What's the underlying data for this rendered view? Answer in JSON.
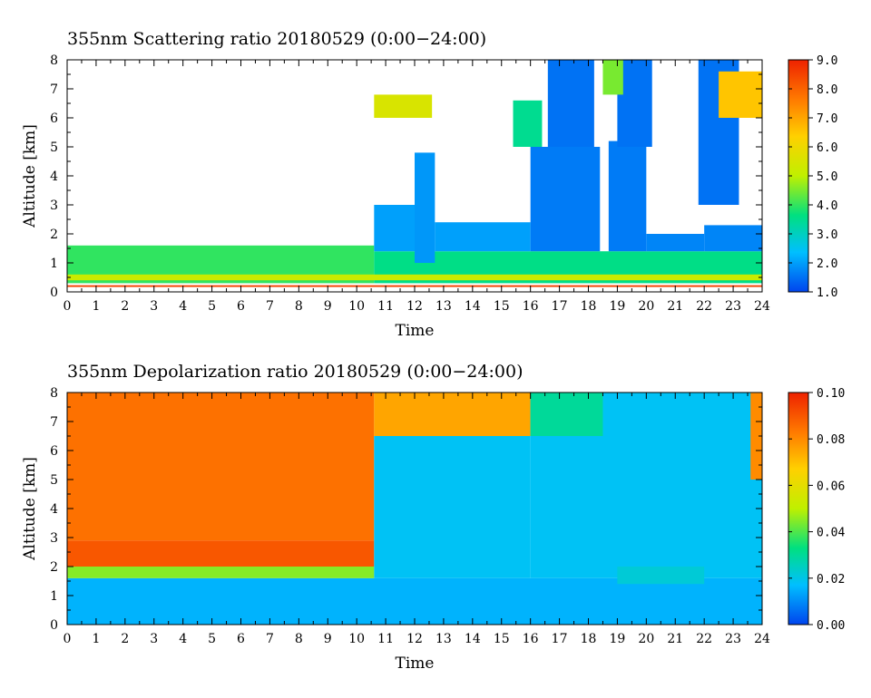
{
  "chart_data": [
    {
      "type": "heatmap",
      "title": "355nm Scattering ratio  20180529 (0:00−24:00)",
      "xlabel": "Time",
      "ylabel": "Altitude [km]",
      "xlim": [
        0,
        24
      ],
      "ylim": [
        0,
        8
      ],
      "x_ticks": [
        0,
        1,
        2,
        3,
        4,
        5,
        6,
        7,
        8,
        9,
        10,
        11,
        12,
        13,
        14,
        15,
        16,
        17,
        18,
        19,
        20,
        21,
        22,
        23,
        24
      ],
      "y_ticks": [
        0,
        1,
        2,
        3,
        4,
        5,
        6,
        7,
        8
      ],
      "colorbar": {
        "min": 1.0,
        "max": 9.0,
        "ticks": [
          "1.0",
          "2.0",
          "3.0",
          "4.0",
          "5.0",
          "6.0",
          "7.0",
          "8.0",
          "9.0"
        ],
        "colors": [
          "#0044ee",
          "#00bfff",
          "#00e080",
          "#c0f000",
          "#ffd000",
          "#ff7a00",
          "#ee2200"
        ]
      },
      "layers": [
        {
          "x": [
            0,
            10.6
          ],
          "y": [
            0.3,
            1.6
          ],
          "value": 4.0
        },
        {
          "x": [
            10.6,
            24
          ],
          "y": [
            0.3,
            1.4
          ],
          "value": 3.6
        },
        {
          "x": [
            0,
            24
          ],
          "y": [
            0.4,
            0.6
          ],
          "value": 5.2
        },
        {
          "x": [
            10.6,
            12
          ],
          "y": [
            1.4,
            3.0
          ],
          "value": 2.0
        },
        {
          "x": [
            12,
            12.7
          ],
          "y": [
            1.0,
            4.8
          ],
          "value": 1.9
        },
        {
          "x": [
            12.7,
            16
          ],
          "y": [
            1.4,
            2.4
          ],
          "value": 2.0
        },
        {
          "x": [
            16,
            18.4
          ],
          "y": [
            1.4,
            5.0
          ],
          "value": 1.6
        },
        {
          "x": [
            18.7,
            20
          ],
          "y": [
            1.4,
            5.2
          ],
          "value": 1.6
        },
        {
          "x": [
            20,
            22
          ],
          "y": [
            1.4,
            2.0
          ],
          "value": 1.7
        },
        {
          "x": [
            22,
            24
          ],
          "y": [
            1.4,
            2.3
          ],
          "value": 1.7
        },
        {
          "x": [
            16.6,
            18.2
          ],
          "y": [
            5.0,
            8.0
          ],
          "value": 1.5
        },
        {
          "x": [
            19.0,
            20.2
          ],
          "y": [
            5.0,
            8.0
          ],
          "value": 1.5
        },
        {
          "x": [
            21.8,
            23.2
          ],
          "y": [
            3.0,
            8.0
          ],
          "value": 1.5
        },
        {
          "x": [
            10.6,
            12.6
          ],
          "y": [
            6.0,
            6.8
          ],
          "value": 5.5
        },
        {
          "x": [
            15.4,
            16.4
          ],
          "y": [
            5.0,
            6.6
          ],
          "value": 3.5
        },
        {
          "x": [
            22.5,
            24
          ],
          "y": [
            6.0,
            7.6
          ],
          "value": 6.5
        },
        {
          "x": [
            18.5,
            19.2
          ],
          "y": [
            6.8,
            8.0
          ],
          "value": 4.5
        },
        {
          "x": [
            0,
            24
          ],
          "y": [
            0.17,
            0.23
          ],
          "value": 8.5
        }
      ]
    },
    {
      "type": "heatmap",
      "title": "355nm Depolarization ratio  20180529 (0:00−24:00)",
      "xlabel": "Time",
      "ylabel": "Altitude [km]",
      "xlim": [
        0,
        24
      ],
      "ylim": [
        0,
        8
      ],
      "x_ticks": [
        0,
        1,
        2,
        3,
        4,
        5,
        6,
        7,
        8,
        9,
        10,
        11,
        12,
        13,
        14,
        15,
        16,
        17,
        18,
        19,
        20,
        21,
        22,
        23,
        24
      ],
      "y_ticks": [
        0,
        1,
        2,
        3,
        4,
        5,
        6,
        7,
        8
      ],
      "colorbar": {
        "min": 0.0,
        "max": 0.1,
        "ticks": [
          "0.00",
          "0.02",
          "0.04",
          "0.06",
          "0.08",
          "0.10"
        ],
        "colors": [
          "#0044ee",
          "#00bfff",
          "#00e080",
          "#c0f000",
          "#ffd000",
          "#ff7a00",
          "#ee2200"
        ]
      },
      "layers": [
        {
          "x": [
            0,
            24
          ],
          "y": [
            0,
            1.6
          ],
          "value": 0.015
        },
        {
          "x": [
            0,
            10.6
          ],
          "y": [
            1.6,
            2.0
          ],
          "value": 0.045
        },
        {
          "x": [
            0,
            10.6
          ],
          "y": [
            2.0,
            2.9
          ],
          "value": 0.09
        },
        {
          "x": [
            0,
            10.6
          ],
          "y": [
            2.9,
            8.0
          ],
          "value": 0.085
        },
        {
          "x": [
            10.6,
            16
          ],
          "y": [
            1.6,
            6.5
          ],
          "value": 0.018
        },
        {
          "x": [
            10.6,
            16
          ],
          "y": [
            6.5,
            8.0
          ],
          "value": 0.075
        },
        {
          "x": [
            16,
            24
          ],
          "y": [
            1.6,
            8.0
          ],
          "value": 0.018
        },
        {
          "x": [
            16,
            18.5
          ],
          "y": [
            6.5,
            8.0
          ],
          "value": 0.03
        },
        {
          "x": [
            23.6,
            24
          ],
          "y": [
            5.0,
            8.0
          ],
          "value": 0.08
        },
        {
          "x": [
            19,
            22
          ],
          "y": [
            1.4,
            2.0
          ],
          "value": 0.022
        }
      ]
    }
  ]
}
